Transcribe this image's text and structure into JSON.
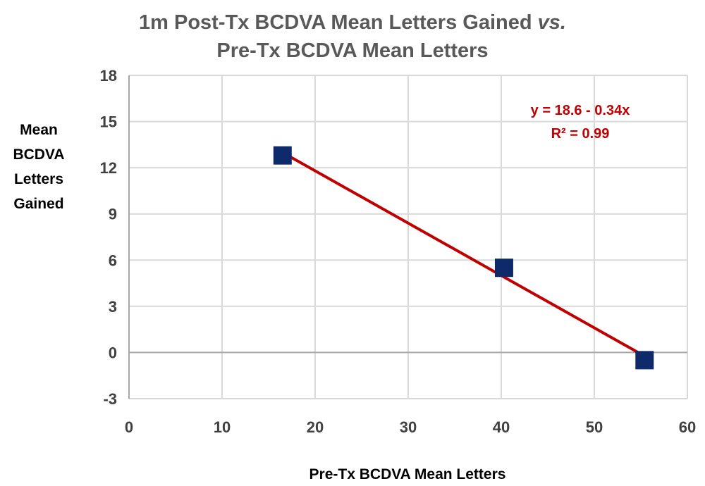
{
  "chart_data": {
    "type": "scatter",
    "title_lines": [
      "1m Post-Tx BCDVA Mean Letters Gained vs.",
      "Pre-Tx BCDVA Mean Letters"
    ],
    "xlabel": "Pre-Tx BCDVA Mean Letters",
    "ylabel_lines": [
      "Mean",
      "BCDVA",
      "Letters",
      "Gained"
    ],
    "xlim": [
      0,
      60
    ],
    "ylim": [
      -3,
      18
    ],
    "x_ticks": [
      0,
      10,
      20,
      30,
      40,
      50,
      60
    ],
    "y_ticks": [
      -3,
      0,
      3,
      6,
      9,
      12,
      15,
      18
    ],
    "grid": true,
    "legend": "none",
    "series": [
      {
        "x": [
          16.5,
          40.3,
          55.4
        ],
        "y": [
          12.8,
          5.5,
          -0.5
        ]
      }
    ],
    "trendline": {
      "intercept": 18.6,
      "slope": -0.34,
      "x_range": [
        16.9,
        55.3
      ],
      "equation_text": "y = 18.6 - 0.34x",
      "r2_text": "R² = 0.99"
    },
    "colors": {
      "marker": "#0f2a6b",
      "trendline": "#c00000",
      "grid": "#d9d9d9",
      "axis": "#a6a6a6"
    }
  }
}
